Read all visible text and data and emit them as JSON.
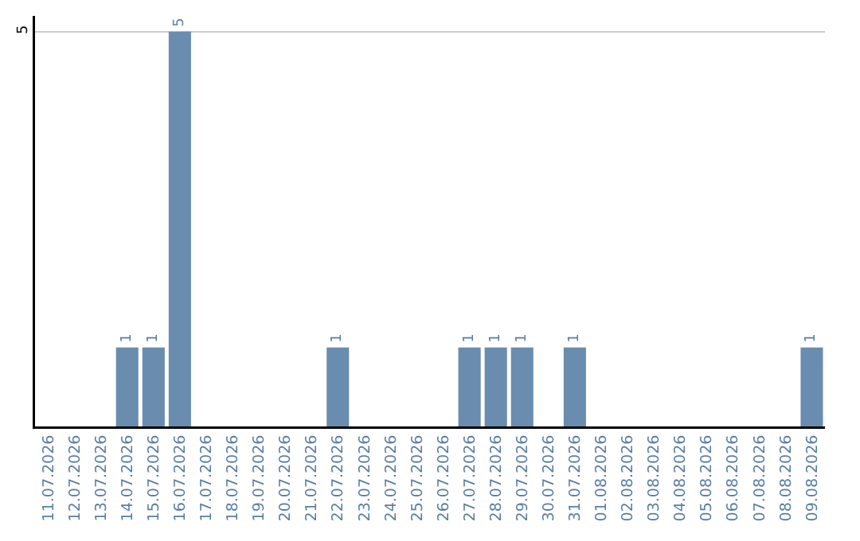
{
  "chart_data": {
    "type": "bar",
    "categories": [
      "11.07.2026",
      "12.07.2026",
      "13.07.2026",
      "14.07.2026",
      "15.07.2026",
      "16.07.2026",
      "17.07.2026",
      "18.07.2026",
      "19.07.2026",
      "20.07.2026",
      "21.07.2026",
      "22.07.2026",
      "23.07.2026",
      "24.07.2026",
      "25.07.2026",
      "26.07.2026",
      "27.07.2026",
      "28.07.2026",
      "29.07.2026",
      "30.07.2026",
      "31.07.2026",
      "01.08.2026",
      "02.08.2026",
      "03.08.2026",
      "04.08.2026",
      "05.08.2026",
      "06.08.2026",
      "07.08.2026",
      "08.08.2026",
      "09.08.2026"
    ],
    "values": [
      0,
      0,
      0,
      1,
      1,
      5,
      0,
      0,
      0,
      0,
      0,
      1,
      0,
      0,
      0,
      0,
      1,
      1,
      1,
      0,
      1,
      0,
      0,
      0,
      0,
      0,
      0,
      0,
      0,
      1
    ],
    "value_labels": [
      null,
      null,
      null,
      "1",
      "1",
      "5",
      null,
      null,
      null,
      null,
      null,
      "1",
      null,
      null,
      null,
      null,
      "1",
      "1",
      "1",
      null,
      "1",
      null,
      null,
      null,
      null,
      null,
      null,
      null,
      null,
      "1"
    ],
    "color": "#6a8caf",
    "ylim": [
      0,
      5.2
    ],
    "yticks": [
      5
    ],
    "grid": "y"
  }
}
